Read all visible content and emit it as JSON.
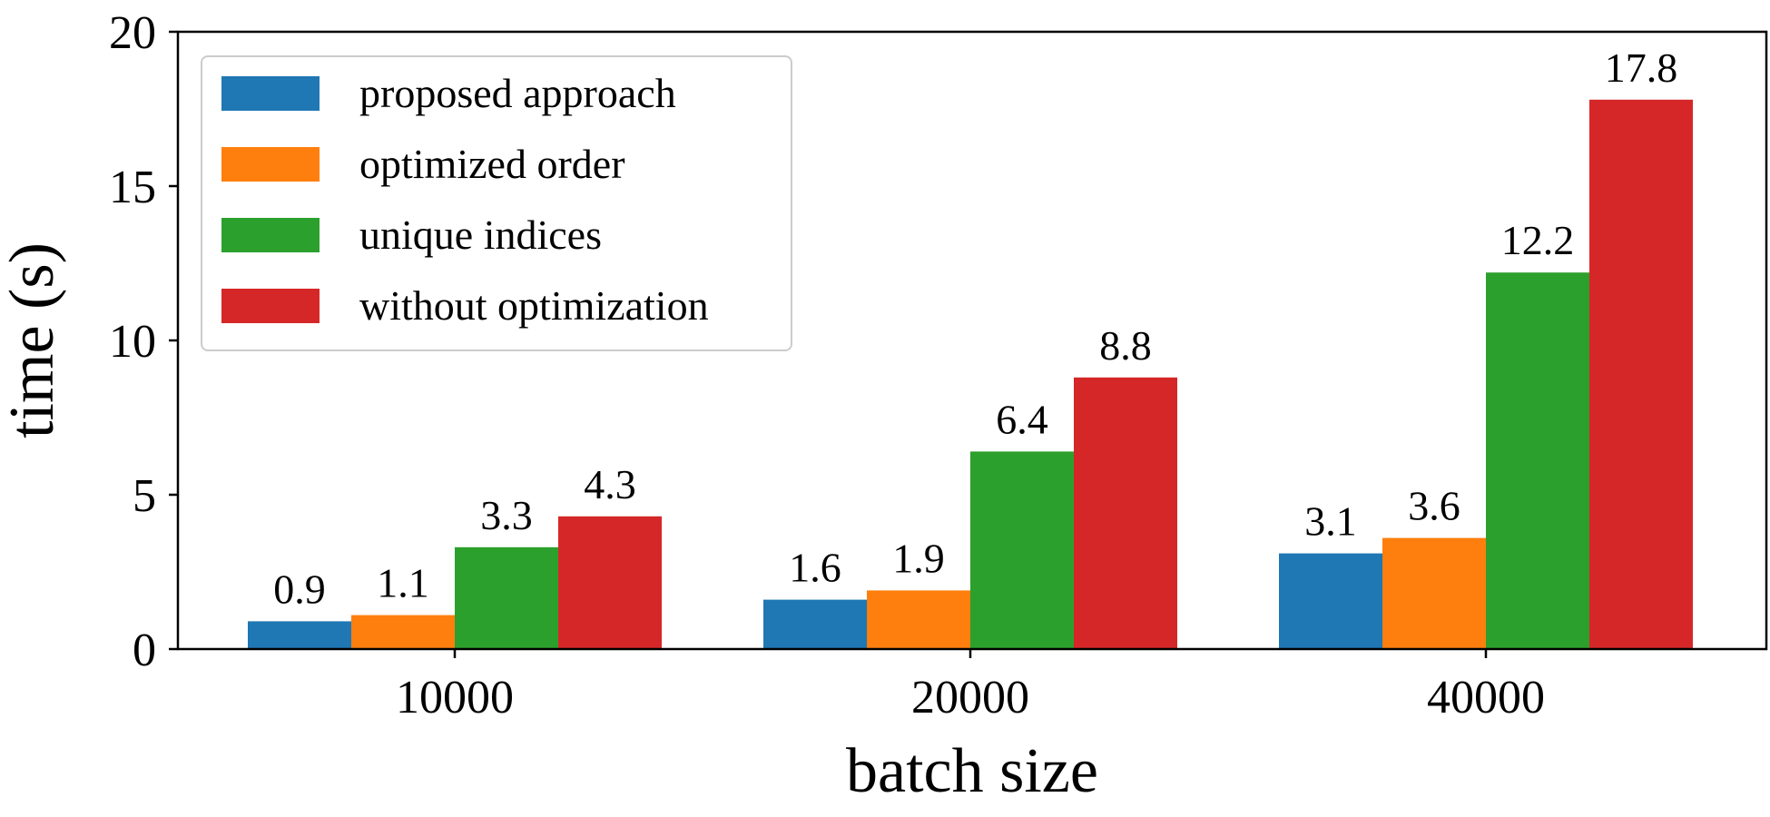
{
  "chart_data": {
    "type": "bar",
    "title": "",
    "xlabel": "batch size",
    "ylabel": "time (s)",
    "categories": [
      "10000",
      "20000",
      "40000"
    ],
    "ylim": [
      0,
      20
    ],
    "yticks": [
      0,
      5,
      10,
      15,
      20
    ],
    "grid": false,
    "legend_position": "top-left",
    "series": [
      {
        "name": "proposed approach",
        "color": "#1f77b4",
        "values": [
          0.9,
          1.6,
          3.1
        ],
        "labels": [
          "0.9",
          "1.6",
          "3.1"
        ]
      },
      {
        "name": "optimized order",
        "color": "#ff7f0e",
        "values": [
          1.1,
          1.9,
          3.6
        ],
        "labels": [
          "1.1",
          "1.9",
          "3.6"
        ]
      },
      {
        "name": "unique indices",
        "color": "#2ca02c",
        "values": [
          3.3,
          6.4,
          12.2
        ],
        "labels": [
          "3.3",
          "6.4",
          "12.2"
        ]
      },
      {
        "name": "without optimization",
        "color": "#d62728",
        "values": [
          4.3,
          8.8,
          17.8
        ],
        "labels": [
          "4.3",
          "8.8",
          "17.8"
        ]
      }
    ]
  }
}
